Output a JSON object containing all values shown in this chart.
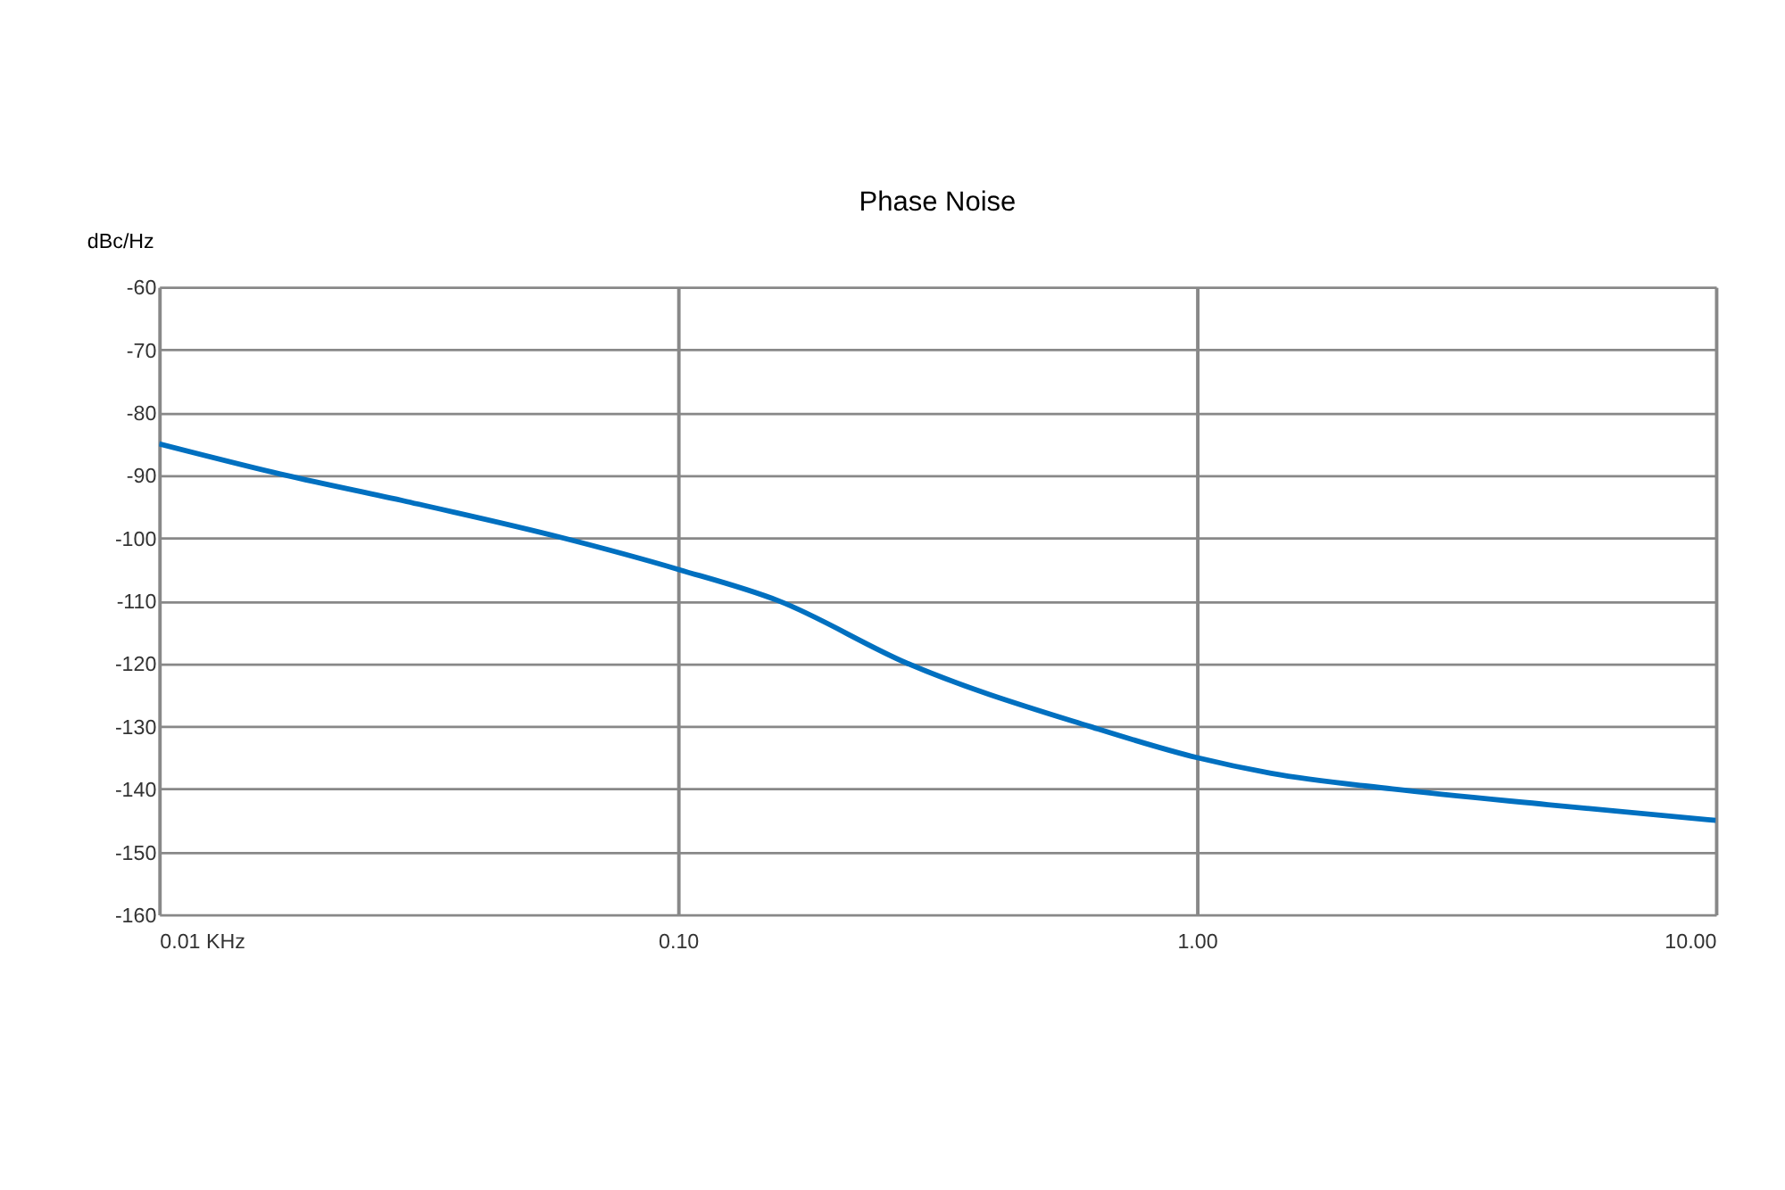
{
  "chart_data": {
    "type": "line",
    "title": "Phase Noise",
    "ylabel": "dBc/Hz",
    "x": [
      0.01,
      0.0175,
      0.03,
      0.06,
      0.1,
      0.156,
      0.277,
      0.62,
      1.0,
      1.39,
      2.38,
      4.75,
      10.0
    ],
    "series": [
      {
        "color": "#0070c0",
        "values": [
          -85,
          -90,
          -94.2,
          -100,
          -105,
          -110,
          -120,
          -130,
          -135,
          -137.5,
          -140,
          -142.5,
          -145
        ]
      }
    ],
    "log": "x",
    "xlim": [
      0.01,
      10
    ],
    "xticks": [
      {
        "value": 0.01,
        "label": "0.01 KHz"
      },
      {
        "value": 0.1,
        "label": "0.10"
      },
      {
        "value": 1,
        "label": "1.00"
      },
      {
        "value": 10,
        "label": "10.00"
      }
    ],
    "ylim": [
      -160,
      -60
    ],
    "yticks": [
      -160,
      -150,
      -140,
      -130,
      -120,
      -110,
      -100,
      -90,
      -80,
      -70,
      -60
    ],
    "grid": true,
    "marker": "none",
    "line_style": "solid"
  }
}
